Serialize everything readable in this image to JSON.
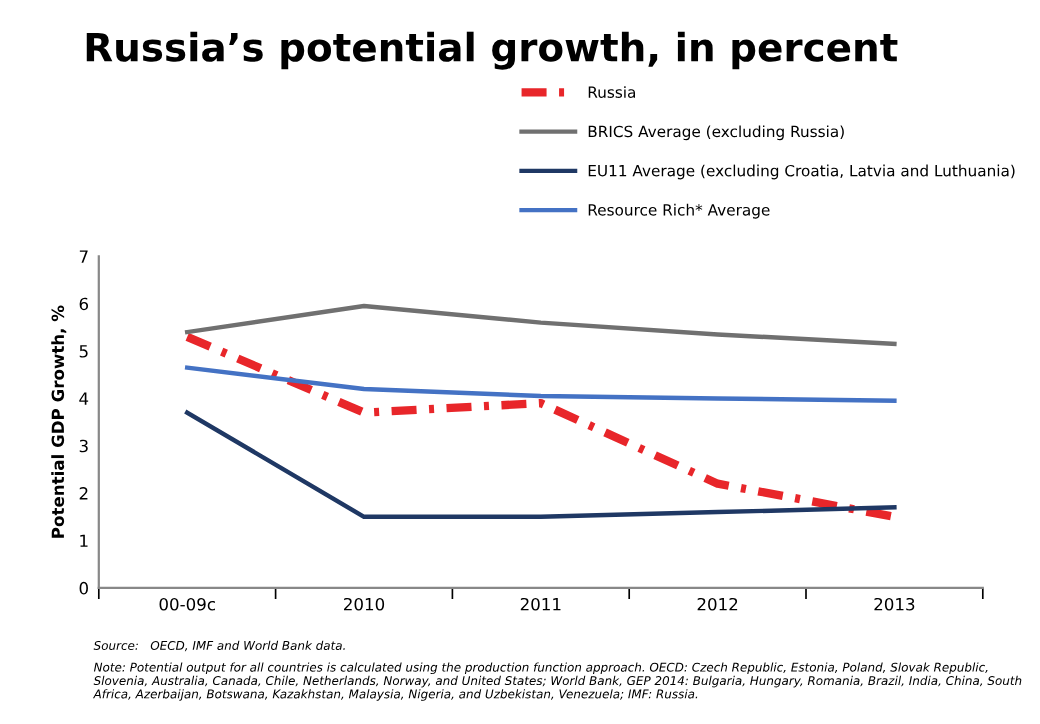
{
  "chart_data": {
    "type": "line",
    "title": "Russia’s potential growth, in percent",
    "ylabel": "Potential GDP Growth, %",
    "categories": [
      "00-09c",
      "2010",
      "2011",
      "2012",
      "2013"
    ],
    "series": [
      {
        "name": "Russia",
        "color": "#e8262a",
        "values": [
          5.3,
          3.7,
          3.9,
          2.2,
          1.5
        ],
        "line_style": "dashed"
      },
      {
        "name": "BRICS Average (excluding Russia)",
        "color": "#707070",
        "values": [
          5.4,
          5.95,
          5.6,
          5.35,
          5.15
        ]
      },
      {
        "name": "EU11 Average (excluding Croatia, Latvia and Luthuania)",
        "color": "#1f3864",
        "values": [
          3.7,
          1.5,
          1.5,
          1.6,
          1.7
        ]
      },
      {
        "name": "Resource Rich* Average",
        "color": "#4472c4",
        "values": [
          4.65,
          4.2,
          4.05,
          4.0,
          3.95
        ]
      }
    ],
    "ylim": [
      0,
      7
    ],
    "yticks": [
      0,
      1,
      2,
      3,
      4,
      5,
      6,
      7
    ],
    "grid": false,
    "legend": "top right",
    "marker": "none",
    "line_style": "solid",
    "annotations": [
      "Source:   OECD, IMF and World Bank data.",
      "Note: Potential output for all countries is calculated using the production function approach. OECD: Czech Republic, Estonia, Poland, Slovak Republic, Slovenia, Australia, Canada, Chile, Netherlands, Norway, and United States; World Bank, GEP 2014: Bulgaria, Hungary, Romania, Brazil, India, China, South Africa, Azerbaijan, Botswana, Kazakhstan, Malaysia, Nigeria, and Uzbekistan, Venezuela; IMF: Russia."
    ]
  }
}
